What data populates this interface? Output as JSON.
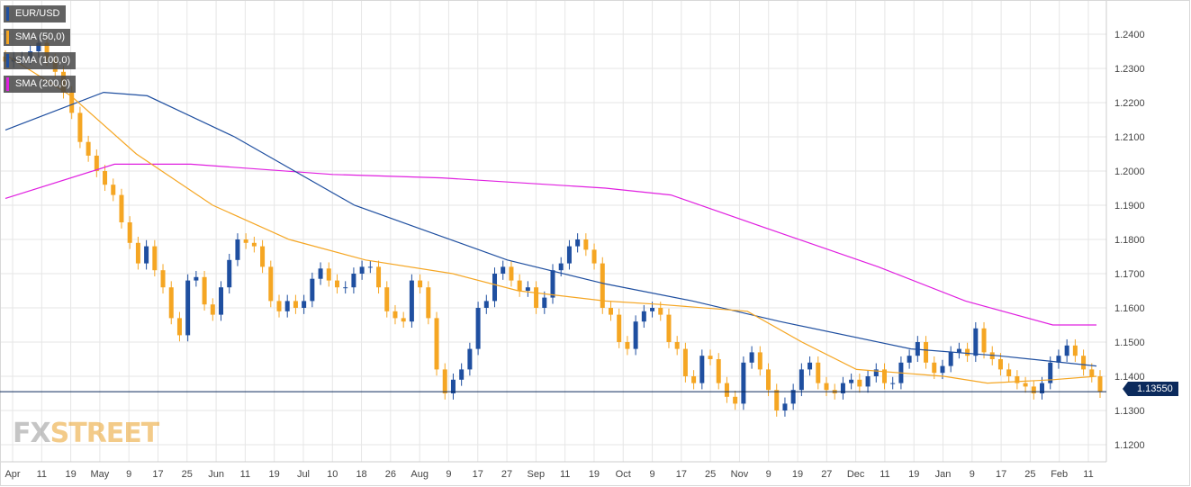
{
  "legend": [
    {
      "label": "EUR/USD",
      "color": "#1f4fa0"
    },
    {
      "label": "SMA (50,0)",
      "color": "#f5a623"
    },
    {
      "label": "SMA (100,0)",
      "color": "#1f4fa0"
    },
    {
      "label": "SMA (200,0)",
      "color": "#e020e0"
    }
  ],
  "watermark": {
    "fx": "FX",
    "street": "STREET"
  },
  "last_price": "1.13550",
  "colors": {
    "up": "#1f4fa0",
    "down": "#f5a623",
    "sma50": "#f5a623",
    "sma100": "#1f4fa0",
    "sma200": "#e020e0",
    "grid": "#e6e6e6",
    "price_line": "#0b2a5c"
  },
  "chart_data": {
    "type": "candlestick",
    "symbol": "EUR/USD",
    "ylim": [
      1.115,
      1.25
    ],
    "y_ticks": [
      "1.2400",
      "1.2300",
      "1.2200",
      "1.2100",
      "1.2000",
      "1.1900",
      "1.1800",
      "1.1700",
      "1.1600",
      "1.1500",
      "1.1400",
      "1.1300",
      "1.1200"
    ],
    "x_ticks": [
      "Apr",
      "11",
      "19",
      "May",
      "9",
      "17",
      "25",
      "Jun",
      "11",
      "19",
      "Jul",
      "10",
      "18",
      "26",
      "Aug",
      "9",
      "17",
      "27",
      "Sep",
      "11",
      "19",
      "Oct",
      "9",
      "17",
      "25",
      "Nov",
      "9",
      "19",
      "27",
      "Dec",
      "11",
      "19",
      "Jan",
      "9",
      "17",
      "25",
      "Feb",
      "11"
    ],
    "close_series": [
      1.232,
      1.233,
      1.233,
      1.235,
      1.2375,
      1.2325,
      1.229,
      1.223,
      1.217,
      1.2085,
      1.2045,
      1.2,
      1.196,
      1.193,
      1.185,
      1.179,
      1.173,
      1.178,
      1.171,
      1.166,
      1.157,
      1.152,
      1.168,
      1.169,
      1.161,
      1.158,
      1.166,
      1.174,
      1.18,
      1.179,
      1.178,
      1.172,
      1.162,
      1.159,
      1.162,
      1.16,
      1.162,
      1.1685,
      1.1715,
      1.168,
      1.166,
      1.166,
      1.17,
      1.172,
      1.172,
      1.166,
      1.159,
      1.157,
      1.156,
      1.168,
      1.166,
      1.157,
      1.142,
      1.135,
      1.139,
      1.142,
      1.148,
      1.16,
      1.162,
      1.17,
      1.172,
      1.168,
      1.165,
      1.166,
      1.16,
      1.163,
      1.171,
      1.173,
      1.178,
      1.18,
      1.177,
      1.173,
      1.16,
      1.158,
      1.15,
      1.148,
      1.156,
      1.159,
      1.16,
      1.158,
      1.15,
      1.148,
      1.14,
      1.138,
      1.146,
      1.145,
      1.138,
      1.134,
      1.132,
      1.144,
      1.147,
      1.142,
      1.136,
      1.13,
      1.132,
      1.136,
      1.142,
      1.144,
      1.138,
      1.136,
      1.135,
      1.138,
      1.139,
      1.137,
      1.14,
      1.142,
      1.138,
      1.138,
      1.144,
      1.146,
      1.15,
      1.144,
      1.141,
      1.143,
      1.147,
      1.148,
      1.146,
      1.154,
      1.147,
      1.145,
      1.142,
      1.14,
      1.138,
      1.137,
      1.135,
      1.138,
      1.144,
      1.146,
      1.149,
      1.146,
      1.142,
      1.14,
      1.1355
    ],
    "sma50": [
      [
        1.234,
        0.0
      ],
      [
        1.222,
        0.06
      ],
      [
        1.205,
        0.12
      ],
      [
        1.19,
        0.19
      ],
      [
        1.18,
        0.26
      ],
      [
        1.174,
        0.33
      ],
      [
        1.17,
        0.41
      ],
      [
        1.165,
        0.47
      ],
      [
        1.162,
        0.55
      ],
      [
        1.161,
        0.6
      ],
      [
        1.159,
        0.68
      ],
      [
        1.15,
        0.73
      ],
      [
        1.142,
        0.78
      ],
      [
        1.14,
        0.86
      ],
      [
        1.138,
        0.9
      ],
      [
        1.139,
        0.96
      ],
      [
        1.14,
        1.0
      ]
    ],
    "sma100": [
      [
        1.212,
        0.0
      ],
      [
        1.223,
        0.09
      ],
      [
        1.222,
        0.13
      ],
      [
        1.21,
        0.21
      ],
      [
        1.19,
        0.32
      ],
      [
        1.174,
        0.46
      ],
      [
        1.167,
        0.55
      ],
      [
        1.162,
        0.63
      ],
      [
        1.156,
        0.71
      ],
      [
        1.148,
        0.83
      ],
      [
        1.146,
        0.91
      ],
      [
        1.143,
        1.0
      ]
    ],
    "sma200": [
      [
        1.192,
        0.0
      ],
      [
        1.202,
        0.1
      ],
      [
        1.202,
        0.17
      ],
      [
        1.199,
        0.3
      ],
      [
        1.198,
        0.4
      ],
      [
        1.195,
        0.55
      ],
      [
        1.193,
        0.61
      ],
      [
        1.183,
        0.7
      ],
      [
        1.172,
        0.8
      ],
      [
        1.162,
        0.88
      ],
      [
        1.155,
        0.96
      ],
      [
        1.155,
        1.0
      ]
    ]
  }
}
